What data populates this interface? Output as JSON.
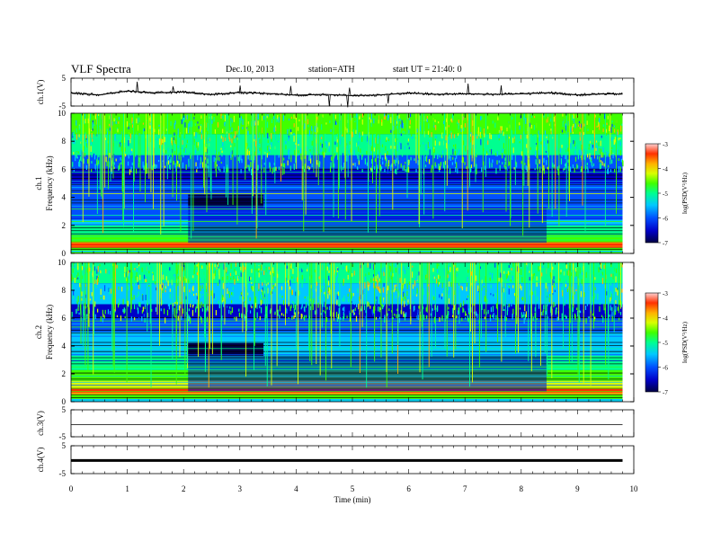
{
  "header": {
    "title": "VLF Spectra",
    "date": "Dec.10, 2013",
    "station": "station=ATH",
    "start": "start  UT =   21:40: 0"
  },
  "colors": {
    "colormap": [
      "#000044",
      "#0000c8",
      "#0050ff",
      "#00c8ff",
      "#00ff90",
      "#40ff00",
      "#d8ff00",
      "#ffb000",
      "#ff3000",
      "#ffd0d0"
    ],
    "trace": "#000000"
  },
  "chart_data": [
    {
      "type": "line",
      "panel": "ch1",
      "ylabel": "ch.1(V)",
      "ylim": [
        -5,
        5
      ],
      "yticks": [
        "5",
        "-5"
      ],
      "xlim": [
        0,
        10
      ],
      "x": [
        0.0,
        0.5,
        1.0,
        1.5,
        2.0,
        2.5,
        3.0,
        3.5,
        4.0,
        4.5,
        5.0,
        5.5,
        6.0,
        6.5,
        7.0,
        7.5,
        8.0,
        8.5,
        9.0,
        9.5,
        9.8
      ],
      "y": [
        -0.3,
        -1.0,
        0.4,
        -0.3,
        0.1,
        -0.9,
        -0.1,
        -0.5,
        -1.1,
        -0.8,
        -1.3,
        -1.0,
        -0.3,
        -0.8,
        -0.6,
        -0.8,
        -0.6,
        -0.2,
        -1.0,
        -0.6,
        -0.7
      ]
    },
    {
      "type": "heatmap",
      "panel": "ch1-spectrogram",
      "ylabel_channel": "ch.1",
      "ylabel": "Frequency (kHz)",
      "ylim": [
        0,
        10
      ],
      "yticks": [
        "0",
        "2",
        "4",
        "6",
        "8",
        "10"
      ],
      "xlim": [
        0,
        10
      ],
      "colorbar_label": "log(PSD(V²/Hz)",
      "colorbar_ticks": [
        "-3",
        "-4",
        "-5",
        "-6",
        "-7"
      ],
      "colorbar_range": [
        -7,
        -3
      ]
    },
    {
      "type": "heatmap",
      "panel": "ch2-spectrogram",
      "ylabel_channel": "ch.2",
      "ylabel": "Frequency (kHz)",
      "ylim": [
        0,
        10
      ],
      "yticks": [
        "0",
        "2",
        "4",
        "6",
        "8",
        "10"
      ],
      "xlim": [
        0,
        10
      ],
      "colorbar_label": "log(PSD(V²/Hz)",
      "colorbar_ticks": [
        "-3",
        "-4",
        "-5",
        "-6",
        "-7"
      ],
      "colorbar_range": [
        -7,
        -3
      ]
    },
    {
      "type": "line",
      "panel": "ch3",
      "ylabel": "ch.3(V)",
      "ylim": [
        -5,
        5
      ],
      "yticks": [
        "5",
        "-5"
      ],
      "xlim": [
        0,
        10
      ],
      "x": [
        0.0,
        9.8
      ],
      "y": [
        -0.5,
        -0.5
      ]
    },
    {
      "type": "line",
      "panel": "ch4",
      "ylabel": "ch.4(V)",
      "ylim": [
        -5,
        5
      ],
      "yticks": [
        "5",
        "-5"
      ],
      "xlim": [
        0,
        10
      ],
      "x": [
        0.0,
        9.8
      ],
      "y": [
        -0.3,
        -0.3
      ]
    }
  ],
  "x_axis": {
    "label": "Time (min)",
    "ticks": [
      "0",
      "1",
      "2",
      "3",
      "4",
      "5",
      "6",
      "7",
      "8",
      "9",
      "10"
    ]
  }
}
